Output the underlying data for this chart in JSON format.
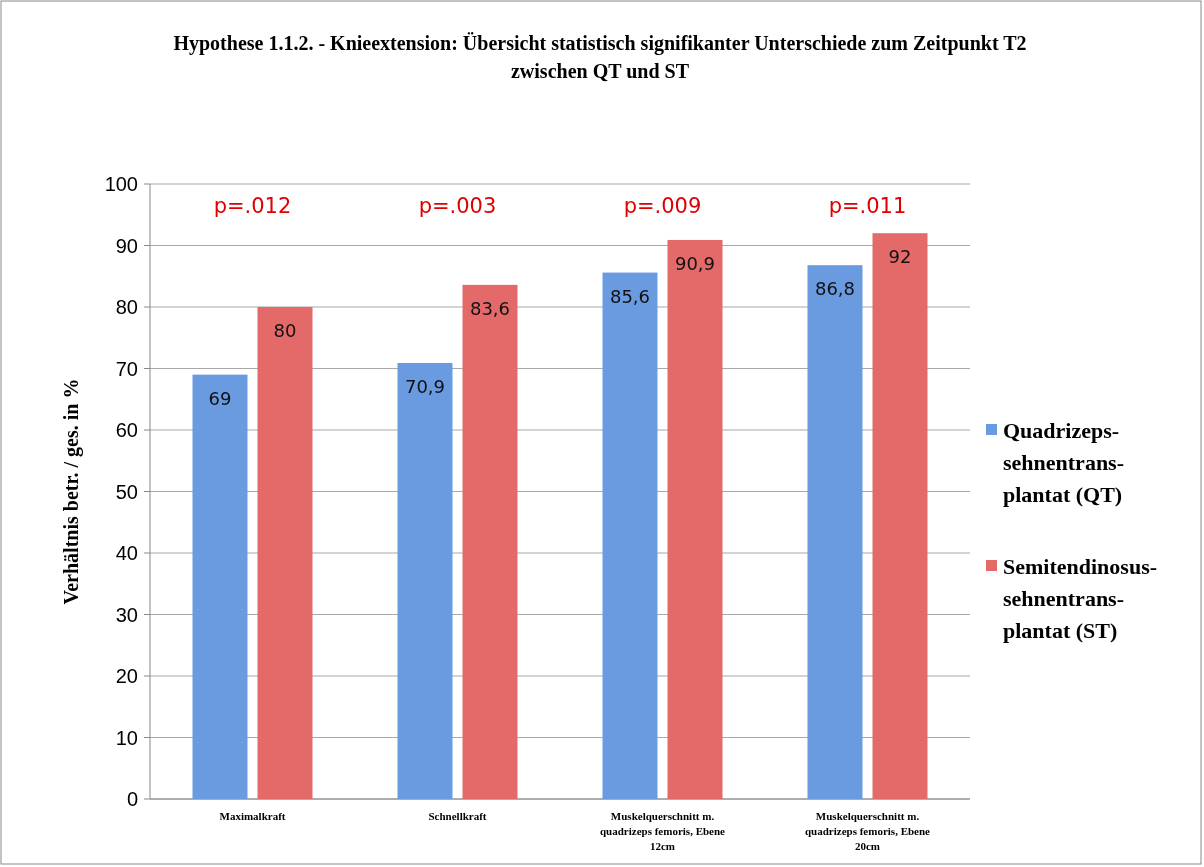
{
  "chart_data": {
    "type": "bar",
    "title": "Hypothese 1.1.2. - Knieextension: Übersicht statistisch signifikanter Unterschiede zum Zeitpunkt T2 zwischen QT und ST",
    "ylabel": "Verhältnis betr. / ges. in %",
    "categories": [
      "Maximalkraft",
      "Schnellkraft",
      "Muskelquerschnitt m. quadrizeps femoris, Ebene 12cm",
      "Muskelquerschnitt m. quadrizeps femoris, Ebene 20cm"
    ],
    "series": [
      {
        "name": "Quadrizeps-sehnentrans-plantat (QT)",
        "color": "#6a9ae0",
        "values": [
          69,
          70.9,
          85.6,
          86.8
        ],
        "value_labels": [
          "69",
          "70,9",
          "85,6",
          "86,8"
        ]
      },
      {
        "name": "Semitendinosus-sehnentrans-plantat (ST)",
        "color": "#e46a6a",
        "values": [
          80,
          83.6,
          90.9,
          92
        ],
        "value_labels": [
          "80",
          "83,6",
          "90,9",
          "92"
        ]
      }
    ],
    "annotations": [
      "p=.012",
      "p=.003",
      "p=.009",
      "p=.011"
    ],
    "ylim": [
      0,
      100
    ],
    "yticks": [
      0,
      10,
      20,
      30,
      40,
      50,
      60,
      70,
      80,
      90,
      100
    ],
    "grid": "y",
    "legend": "right"
  }
}
